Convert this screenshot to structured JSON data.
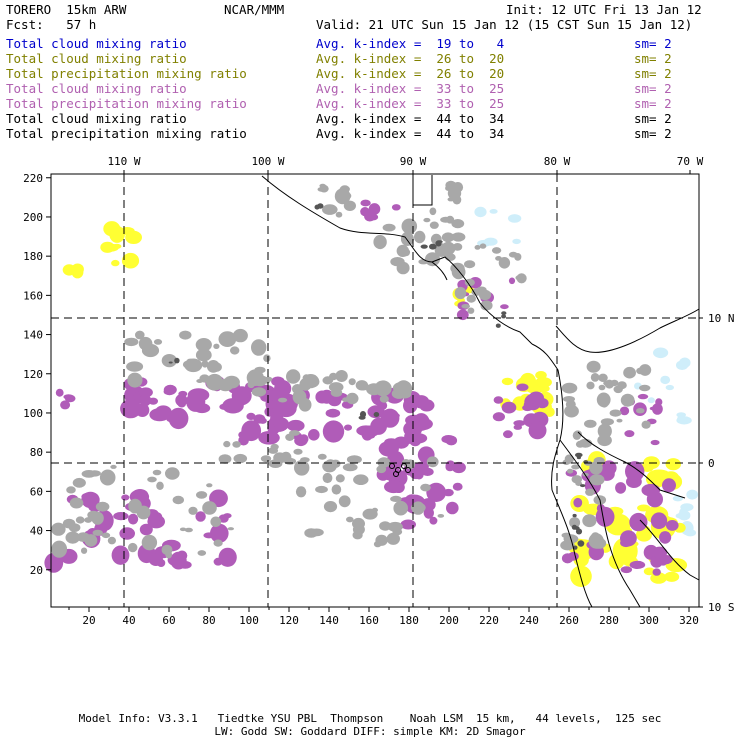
{
  "header": {
    "model": "TORERO  15km ARW",
    "org": "NCAR/MMM",
    "init": "Init: 12 UTC Fri 13 Jan 12",
    "fcst": "Fcst:   57 h",
    "valid": "Valid: 21 UTC Sun 15 Jan 12 (15 CST Sun 15 Jan 12)"
  },
  "legend": [
    {
      "name": "Total cloud mixing ratio",
      "avg": "Avg. k-index =  19 to   4",
      "sm": "sm= 2",
      "color": "#0000cc"
    },
    {
      "name": "Total cloud mixing ratio",
      "avg": "Avg. k-index =  26 to  20",
      "sm": "sm= 2",
      "color": "#808000"
    },
    {
      "name": "Total precipitation mixing ratio",
      "avg": "Avg. k-index =  26 to  20",
      "sm": "sm= 2",
      "color": "#808000"
    },
    {
      "name": "Total cloud mixing ratio",
      "avg": "Avg. k-index =  33 to  25",
      "sm": "sm= 2",
      "color": "#b060b0"
    },
    {
      "name": "Total precipitation mixing ratio",
      "avg": "Avg. k-index =  33 to  25",
      "sm": "sm= 2",
      "color": "#b060b0"
    },
    {
      "name": "Total cloud mixing ratio",
      "avg": "Avg. k-index =  44 to  34",
      "sm": "sm= 2",
      "color": "#000000"
    },
    {
      "name": "Total precipitation mixing ratio",
      "avg": "Avg. k-index =  44 to  34",
      "sm": "sm= 2",
      "color": "#000000"
    }
  ],
  "axes": {
    "x_ticks": [
      "20",
      "40",
      "60",
      "80",
      "100",
      "120",
      "140",
      "160",
      "180",
      "200",
      "220",
      "240",
      "260",
      "280",
      "300",
      "320"
    ],
    "y_ticks": [
      "20",
      "40",
      "60",
      "80",
      "100",
      "120",
      "140",
      "160",
      "180",
      "200",
      "220"
    ],
    "lon_labels": [
      "110 W",
      "100 W",
      "90 W",
      "80 W",
      "70 W"
    ],
    "lat_labels": [
      "10 N",
      "0",
      "10 S"
    ]
  },
  "colors": {
    "cloud_light": "#cfeefa",
    "cloud_mid": "#ffff33",
    "precip_mid": "#b05cb8",
    "cloud_high": "#a8a8a8",
    "precip_high": "#555555"
  },
  "footer": {
    "line1": "Model Info: V3.3.1   Tiedtke YSU PBL  Thompson    Noah LSM  15 km,   44 levels,  125 sec",
    "line2": "LW: Godd SW: Goddard DIFF: simple KM: 2D Smagor"
  }
}
